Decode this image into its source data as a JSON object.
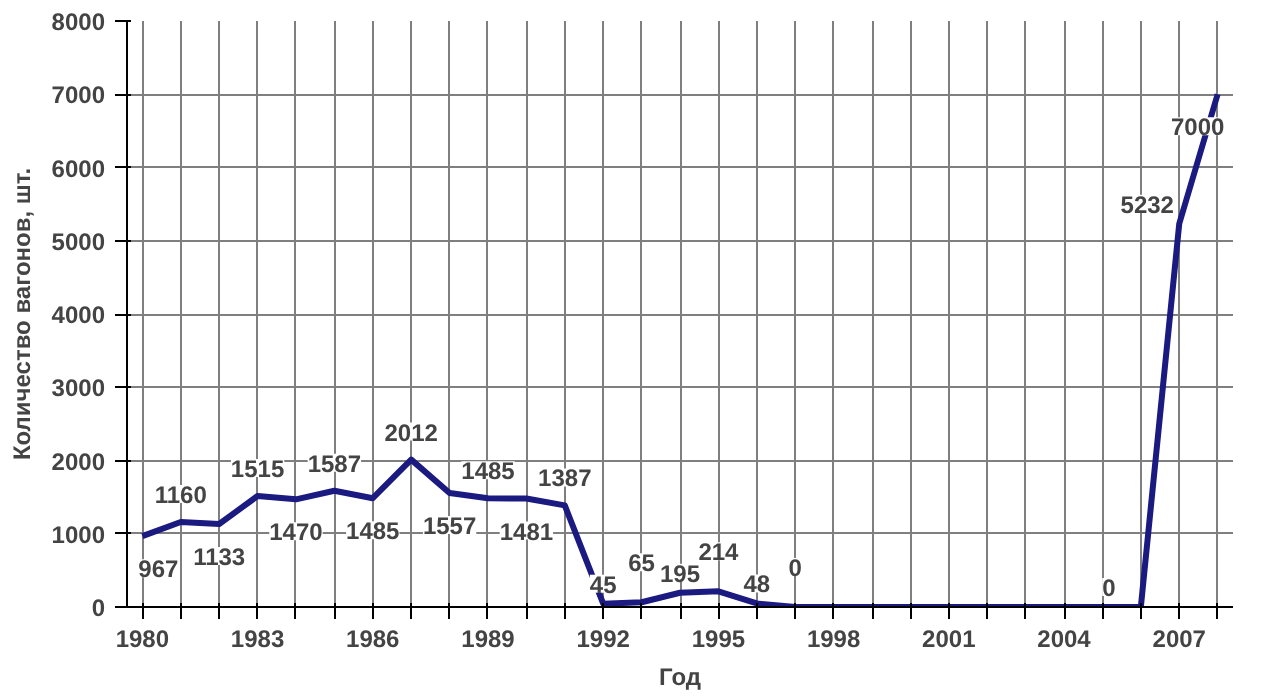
{
  "chart_data": {
    "type": "line",
    "xlabel": "Год",
    "ylabel": "Количество вагонов, шт.",
    "x": [
      1980,
      1981,
      1982,
      1983,
      1984,
      1985,
      1986,
      1987,
      1988,
      1989,
      1990,
      1991,
      1992,
      1993,
      1994,
      1995,
      1996,
      1997,
      1998,
      1999,
      2000,
      2001,
      2002,
      2003,
      2004,
      2005,
      2006,
      2007,
      2008
    ],
    "series": [
      {
        "color": "#1a1a80",
        "values": [
          967,
          1160,
          1133,
          1515,
          1470,
          1587,
          1485,
          2012,
          1557,
          1485,
          1481,
          1387,
          45,
          65,
          195,
          214,
          48,
          0,
          0,
          0,
          0,
          0,
          0,
          0,
          0,
          0,
          0,
          5232,
          7000
        ],
        "value_labels": [
          "967",
          "1160",
          "1133",
          "1515",
          "1470",
          "1587",
          "1485",
          "2012",
          "1557",
          "1485",
          "1481",
          "1387",
          "45",
          "65",
          "195",
          "214",
          "48",
          "0",
          null,
          null,
          null,
          null,
          null,
          null,
          null,
          null,
          "0",
          "5232",
          "7000"
        ]
      }
    ],
    "xlim": [
      1979.6,
      2008.4
    ],
    "ylim": [
      0,
      8000
    ],
    "xticks": [
      1980,
      {
        "value": 1981,
        "label": null
      },
      {
        "value": 1982,
        "label": null
      },
      1983,
      {
        "value": 1984,
        "label": null
      },
      {
        "value": 1985,
        "label": null
      },
      1986,
      {
        "value": 1987,
        "label": null
      },
      {
        "value": 1988,
        "label": null
      },
      1989,
      {
        "value": 1990,
        "label": null
      },
      {
        "value": 1991,
        "label": null
      },
      1992,
      {
        "value": 1993,
        "label": null
      },
      {
        "value": 1994,
        "label": null
      },
      1995,
      {
        "value": 1996,
        "label": null
      },
      {
        "value": 1997,
        "label": null
      },
      1998,
      {
        "value": 1999,
        "label": null
      },
      {
        "value": 2000,
        "label": null
      },
      2001,
      {
        "value": 2002,
        "label": null
      },
      {
        "value": 2003,
        "label": null
      },
      2004,
      {
        "value": 2005,
        "label": null
      },
      {
        "value": 2006,
        "label": null
      },
      2007,
      {
        "value": 2008,
        "label": null
      }
    ],
    "yticks": [
      0,
      1000,
      2000,
      3000,
      4000,
      5000,
      6000,
      7000,
      8000
    ],
    "grid": true,
    "marker": "none",
    "line_style": "solid"
  }
}
